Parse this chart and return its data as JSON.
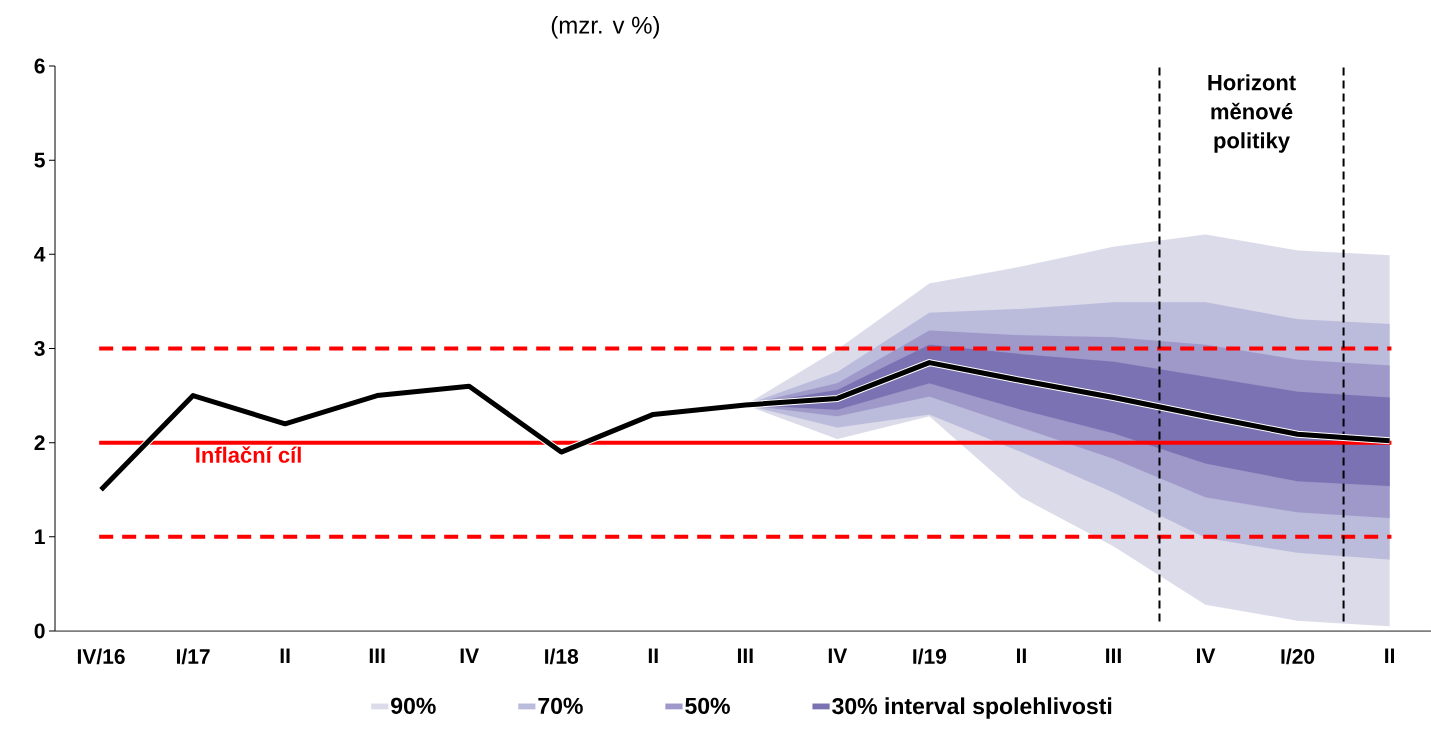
{
  "chart_data": {
    "type": "area",
    "title": "(mzr. v %)",
    "categories": [
      "IV/16",
      "I/17",
      "II",
      "III",
      "IV",
      "I/18",
      "II",
      "III",
      "IV",
      "I/19",
      "II",
      "III",
      "IV",
      "I/20",
      "II"
    ],
    "series": [
      {
        "name": "90%",
        "color": "#dcdbea",
        "values": [
          null,
          null,
          null,
          null,
          null,
          null,
          null,
          null,
          null,
          null,
          null,
          null,
          null,
          null,
          null
        ],
        "lower": [
          null,
          null,
          null,
          null,
          null,
          null,
          null,
          2.4,
          2.04,
          2.28,
          1.42,
          0.9,
          0.28,
          0.11,
          0.05
        ],
        "upper": [
          null,
          null,
          null,
          null,
          null,
          null,
          null,
          2.4,
          2.99,
          3.69,
          3.87,
          4.08,
          4.21,
          4.04,
          3.99
        ]
      },
      {
        "name": "70%",
        "color": "#bbbbdc",
        "values": [
          null,
          null,
          null,
          null,
          null,
          null,
          null,
          null,
          null,
          null,
          null,
          null,
          null,
          null,
          null
        ],
        "lower": [
          null,
          null,
          null,
          null,
          null,
          null,
          null,
          2.4,
          2.16,
          2.3,
          1.9,
          1.47,
          0.99,
          0.83,
          0.76
        ],
        "upper": [
          null,
          null,
          null,
          null,
          null,
          null,
          null,
          2.4,
          2.75,
          3.38,
          3.42,
          3.49,
          3.49,
          3.31,
          3.26
        ]
      },
      {
        "name": "50%",
        "color": "#9e99c9",
        "values": [
          null,
          null,
          null,
          null,
          null,
          null,
          null,
          null,
          null,
          null,
          null,
          null,
          null,
          null,
          null
        ],
        "lower": [
          null,
          null,
          null,
          null,
          null,
          null,
          null,
          2.4,
          2.28,
          2.49,
          2.16,
          1.83,
          1.42,
          1.26,
          1.2
        ],
        "upper": [
          null,
          null,
          null,
          null,
          null,
          null,
          null,
          2.4,
          2.63,
          3.19,
          3.14,
          3.12,
          3.04,
          2.88,
          2.82
        ]
      },
      {
        "name": "30% interval spolehlivosti",
        "color": "#7b72b3",
        "values": [
          null,
          null,
          null,
          null,
          null,
          null,
          null,
          null,
          null,
          null,
          null,
          null,
          null,
          null,
          null
        ],
        "lower": [
          null,
          null,
          null,
          null,
          null,
          null,
          null,
          2.4,
          2.35,
          2.63,
          2.35,
          2.1,
          1.78,
          1.59,
          1.54
        ],
        "upper": [
          null,
          null,
          null,
          null,
          null,
          null,
          null,
          2.4,
          2.56,
          3.04,
          2.94,
          2.86,
          2.7,
          2.54,
          2.48
        ]
      },
      {
        "type": "line",
        "color": "#000000",
        "values": [
          1.5,
          2.5,
          2.2,
          2.5,
          2.6,
          1.9,
          2.3,
          2.4,
          2.47,
          2.85,
          2.66,
          2.48,
          2.28,
          2.09,
          2.02
        ]
      }
    ],
    "ylim": [
      0,
      6
    ],
    "yticks": [
      0,
      1,
      2,
      3,
      4,
      5,
      6
    ],
    "ref_lines": [
      {
        "axis": "y",
        "value": 2,
        "label": "Inflační cíl",
        "color": "#ff0000",
        "line_style": "solid"
      },
      {
        "axis": "y",
        "value": 1,
        "color": "#ff0000",
        "line_style": "dashed"
      },
      {
        "axis": "y",
        "value": 3,
        "color": "#ff0000",
        "line_style": "dashed"
      }
    ],
    "annotations": [
      "Horizont měnové politiky"
    ],
    "grid": false,
    "legend": "bottom",
    "marker": "none",
    "line_style": "solid"
  }
}
